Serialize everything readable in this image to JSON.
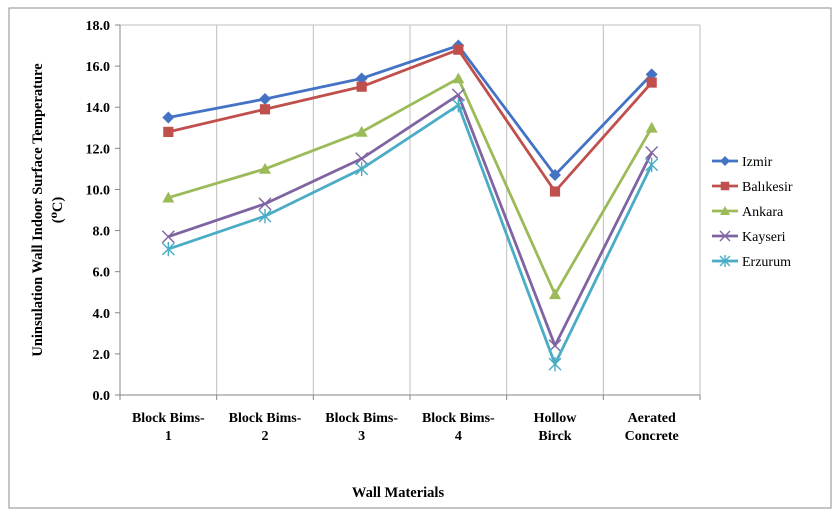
{
  "chart_data": {
    "type": "line",
    "categories": [
      [
        "Block Bims-",
        "1"
      ],
      [
        "Block Bims-",
        "2"
      ],
      [
        "Block Bims-",
        "3"
      ],
      [
        "Block Bims-",
        "4"
      ],
      [
        "Hollow",
        "Birck"
      ],
      [
        "Aerated",
        "Concrete"
      ]
    ],
    "series": [
      {
        "name": "Izmir",
        "values": [
          13.5,
          14.4,
          15.4,
          17.0,
          10.7,
          15.6
        ],
        "color": "#4472C4",
        "marker": "diamond"
      },
      {
        "name": "Balıkesir",
        "values": [
          12.8,
          13.9,
          15.0,
          16.8,
          9.9,
          15.2
        ],
        "color": "#C0504D",
        "marker": "square"
      },
      {
        "name": "Ankara",
        "values": [
          9.6,
          11.0,
          12.8,
          15.4,
          4.9,
          13.0
        ],
        "color": "#9BBB59",
        "marker": "triangle"
      },
      {
        "name": "Kayseri",
        "values": [
          7.7,
          9.3,
          11.5,
          14.6,
          2.4,
          11.8
        ],
        "color": "#8064A2",
        "marker": "x"
      },
      {
        "name": "Erzurum",
        "values": [
          7.1,
          8.7,
          11.0,
          14.1,
          1.5,
          11.2
        ],
        "color": "#4BACC6",
        "marker": "star"
      }
    ],
    "xlabel": "Wall Materials",
    "ylabel": "Uninsulation Wall Indoor Surface Temperature (⁰C)",
    "ylabel_lines": [
      "Uninsulation Wall Indoor Surface Temperature",
      "(⁰C)"
    ],
    "ylim": [
      0,
      18
    ],
    "yticks": [
      "0.0",
      "2.0",
      "4.0",
      "6.0",
      "8.0",
      "10.0",
      "12.0",
      "14.0",
      "16.0",
      "18.0"
    ],
    "grid": "vertical category gridlines",
    "legend": "right"
  }
}
